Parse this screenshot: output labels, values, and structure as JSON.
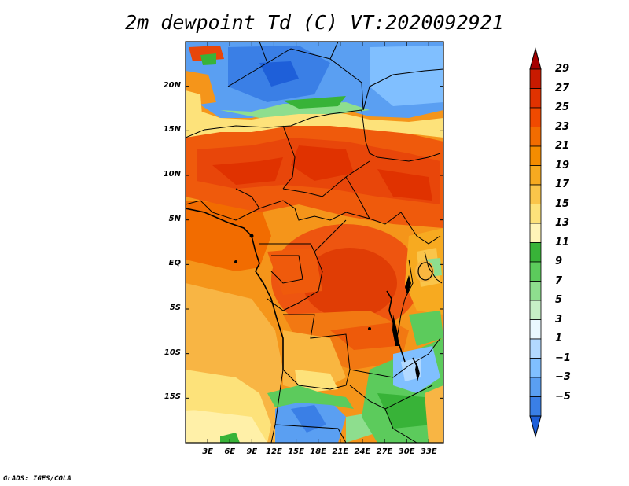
{
  "title": "2m dewpoint Td (C) VT:2020092921",
  "credit": "GrADS: IGES/COLA",
  "axes": {
    "lat_ticks": [
      {
        "label": "20N",
        "value": 20
      },
      {
        "label": "15N",
        "value": 15
      },
      {
        "label": "10N",
        "value": 10
      },
      {
        "label": "5N",
        "value": 5
      },
      {
        "label": "EQ",
        "value": 0
      },
      {
        "label": "5S",
        "value": -5
      },
      {
        "label": "10S",
        "value": -10
      },
      {
        "label": "15S",
        "value": -15
      }
    ],
    "lon_ticks": [
      {
        "label": "3E",
        "value": 3
      },
      {
        "label": "6E",
        "value": 6
      },
      {
        "label": "9E",
        "value": 9
      },
      {
        "label": "12E",
        "value": 12
      },
      {
        "label": "15E",
        "value": 15
      },
      {
        "label": "18E",
        "value": 18
      },
      {
        "label": "21E",
        "value": 21
      },
      {
        "label": "24E",
        "value": 24
      },
      {
        "label": "27E",
        "value": 27
      },
      {
        "label": "30E",
        "value": 30
      },
      {
        "label": "33E",
        "value": 33
      }
    ],
    "lon_range": [
      0,
      35
    ],
    "lat_range": [
      -20,
      25
    ]
  },
  "colorbar": {
    "labels": [
      "29",
      "27",
      "25",
      "23",
      "21",
      "19",
      "17",
      "15",
      "13",
      "11",
      "9",
      "7",
      "5",
      "3",
      "1",
      "−1",
      "−3",
      "−5"
    ],
    "colors": [
      "#a50000",
      "#c81a00",
      "#e03200",
      "#f04a00",
      "#f26c00",
      "#f58c00",
      "#f7aa20",
      "#fac54a",
      "#fde27a",
      "#fff5b8",
      "#38b338",
      "#5ccb5c",
      "#8ede8e",
      "#c6efc6",
      "#eaf8ff",
      "#b2d9ff",
      "#80bfff",
      "#5a9ff2",
      "#3a7fe6",
      "#1e5fd9"
    ]
  }
}
